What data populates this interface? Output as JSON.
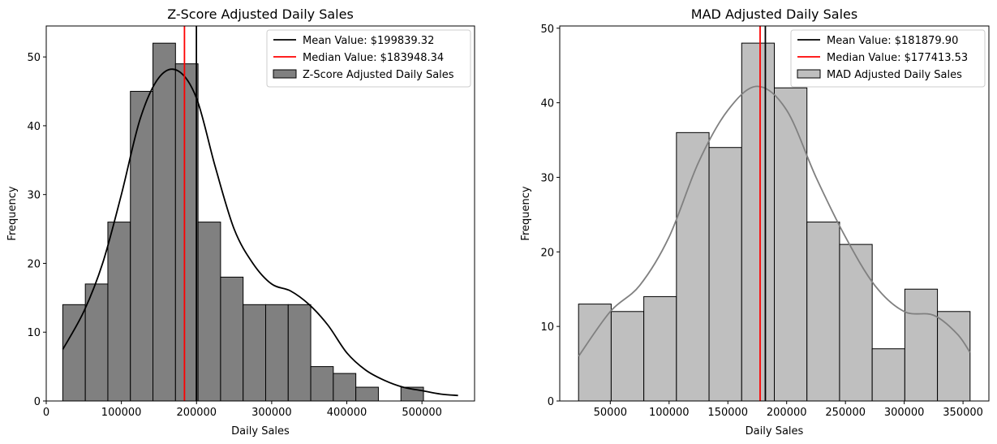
{
  "chart_data": [
    {
      "type": "histogram",
      "title": "Z-Score Adjusted Daily Sales",
      "xlabel": "Daily Sales",
      "ylabel": "Frequency",
      "xlim": [
        0,
        570000
      ],
      "ylim": [
        0,
        54.5
      ],
      "xticks": [
        0,
        100000,
        200000,
        300000,
        400000,
        500000
      ],
      "xtick_labels": [
        "0",
        "100000",
        "200000",
        "300000",
        "400000",
        "500000"
      ],
      "yticks": [
        0,
        10,
        20,
        30,
        40,
        50
      ],
      "ytick_labels": [
        "0",
        "10",
        "20",
        "30",
        "40",
        "50"
      ],
      "bin_start": 22000,
      "bin_width": 30000,
      "values": [
        14,
        17,
        26,
        45,
        52,
        49,
        26,
        18,
        14,
        14,
        14,
        5,
        4,
        2,
        0,
        2
      ],
      "bar_color": "#808080",
      "kde_color": "#000000",
      "kde": [
        [
          22000,
          7.5
        ],
        [
          50000,
          13
        ],
        [
          75000,
          20
        ],
        [
          100000,
          30
        ],
        [
          125000,
          41
        ],
        [
          150000,
          47
        ],
        [
          175000,
          48
        ],
        [
          200000,
          44
        ],
        [
          225000,
          34
        ],
        [
          250000,
          25
        ],
        [
          275000,
          20
        ],
        [
          300000,
          17
        ],
        [
          325000,
          16
        ],
        [
          350000,
          14
        ],
        [
          375000,
          11
        ],
        [
          400000,
          7
        ],
        [
          425000,
          4.5
        ],
        [
          450000,
          3
        ],
        [
          475000,
          2
        ],
        [
          500000,
          1.5
        ],
        [
          525000,
          1
        ],
        [
          548000,
          0.8
        ]
      ],
      "mean": 199839.32,
      "median": 183948.34,
      "legend": {
        "position": "top-right",
        "items": [
          {
            "label": "Mean Value: $199839.32",
            "kind": "line",
            "color": "#000000"
          },
          {
            "label": "Median Value: $183948.34",
            "kind": "line",
            "color": "#ff0000"
          },
          {
            "label": "Z-Score Adjusted Daily Sales",
            "kind": "patch",
            "color": "#808080"
          }
        ]
      }
    },
    {
      "type": "histogram",
      "title": "MAD Adjusted Daily Sales",
      "xlabel": "Daily Sales",
      "ylabel": "Frequency",
      "xlim": [
        7000,
        372000
      ],
      "ylim": [
        0,
        50.3
      ],
      "xticks": [
        50000,
        100000,
        150000,
        200000,
        250000,
        300000,
        350000
      ],
      "xtick_labels": [
        "50000",
        "100000",
        "150000",
        "200000",
        "250000",
        "300000",
        "350000"
      ],
      "yticks": [
        0,
        10,
        20,
        30,
        40,
        50
      ],
      "ytick_labels": [
        "0",
        "10",
        "20",
        "30",
        "40",
        "50"
      ],
      "bin_start": 23000,
      "bin_width": 27750,
      "values": [
        13,
        12,
        14,
        36,
        34,
        48,
        42,
        24,
        21,
        7,
        15,
        12
      ],
      "bar_color": "#bfbfbf",
      "kde_color": "#808080",
      "kde": [
        [
          23000,
          6
        ],
        [
          50000,
          12
        ],
        [
          75000,
          15.5
        ],
        [
          100000,
          22
        ],
        [
          125000,
          32
        ],
        [
          150000,
          39
        ],
        [
          175000,
          42.2
        ],
        [
          200000,
          39
        ],
        [
          225000,
          30
        ],
        [
          250000,
          22
        ],
        [
          275000,
          15.5
        ],
        [
          300000,
          12
        ],
        [
          325000,
          11.5
        ],
        [
          345000,
          9
        ],
        [
          356000,
          6.5
        ]
      ],
      "mean": 181879.9,
      "median": 177413.53,
      "legend": {
        "position": "top-right",
        "items": [
          {
            "label": "Mean Value: $181879.90",
            "kind": "line",
            "color": "#000000"
          },
          {
            "label": "Median Value: $177413.53",
            "kind": "line",
            "color": "#ff0000"
          },
          {
            "label": "MAD Adjusted Daily Sales",
            "kind": "patch",
            "color": "#bfbfbf"
          }
        ]
      }
    }
  ]
}
